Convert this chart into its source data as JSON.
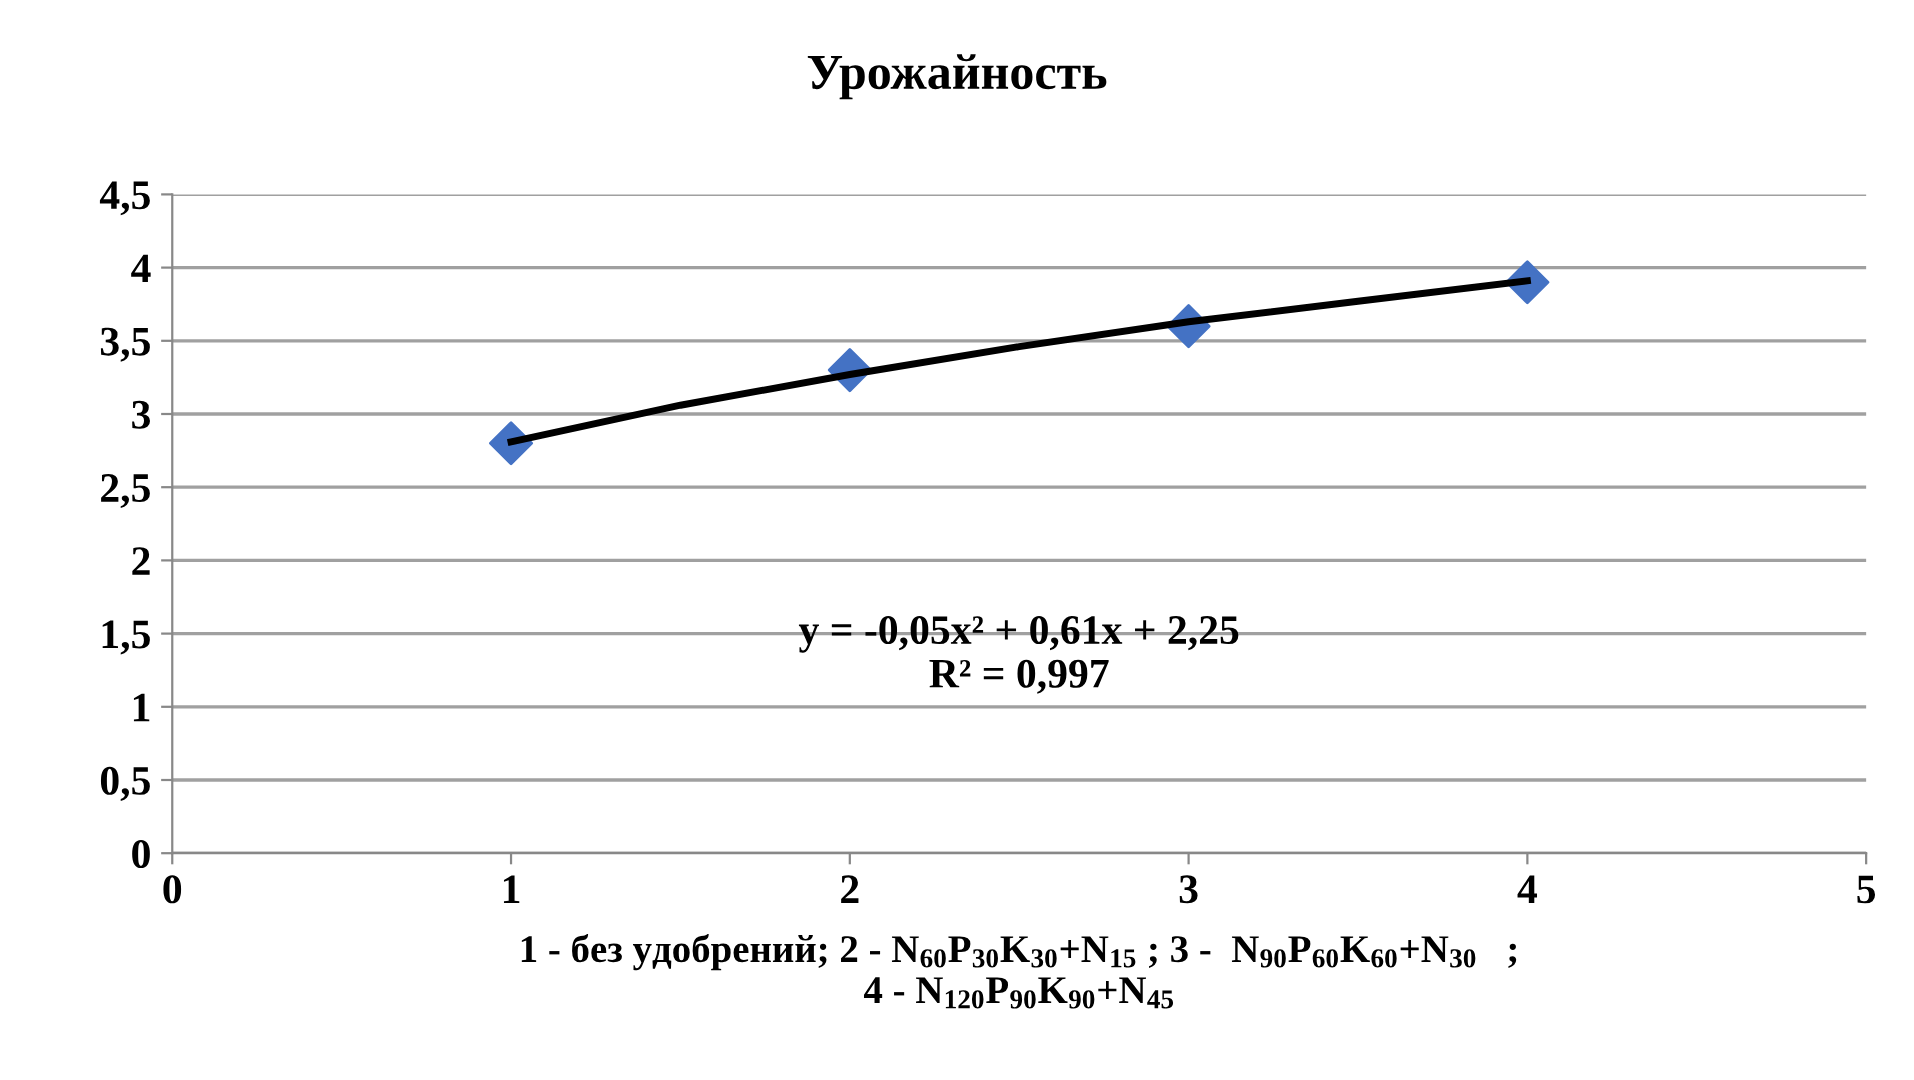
{
  "chart_data": {
    "type": "scatter",
    "title": "Урожайность",
    "xlabel": "1 - без удобрений; 2 - N$_{60}$P$_{30}$K$_{30}$+N$_{15}$ ; 3 -  N$_{90}$P$_{60}$K$_{60}$+N$_{30}$   ;\n4 - N$_{120}$P$_{90}$K$_{90}$+N$_{45}$",
    "series": [
      {
        "color": "#4472c4",
        "marker": "diamond",
        "x": [
          1,
          2,
          3,
          4
        ],
        "values": [
          2.8,
          3.3,
          3.6,
          3.9
        ]
      },
      {
        "type": "line",
        "color": "#000000",
        "marker": "none",
        "x": [
          1,
          1.5,
          2,
          2.5,
          3,
          3.5,
          4
        ],
        "values": [
          2.81,
          3.06,
          3.27,
          3.46,
          3.63,
          3.77,
          3.91
        ]
      }
    ],
    "annotations": [
      "y = -0,05x² + 0,61x + 2,25\nR² = 0,997"
    ],
    "xlim": [
      0,
      5
    ],
    "xticks": [
      0,
      1,
      2,
      3,
      4,
      5
    ],
    "ylim": [
      0,
      4.5
    ],
    "yticks": [
      0,
      {
        "value": 0.5,
        "label": "0,5"
      },
      1,
      {
        "value": 1.5,
        "label": "1,5"
      },
      2,
      {
        "value": 2.5,
        "label": "2,5"
      },
      3,
      {
        "value": 3.5,
        "label": "3,5"
      },
      4,
      {
        "value": 4.5,
        "label": "4,5"
      }
    ],
    "grid": "y",
    "legend": false
  }
}
